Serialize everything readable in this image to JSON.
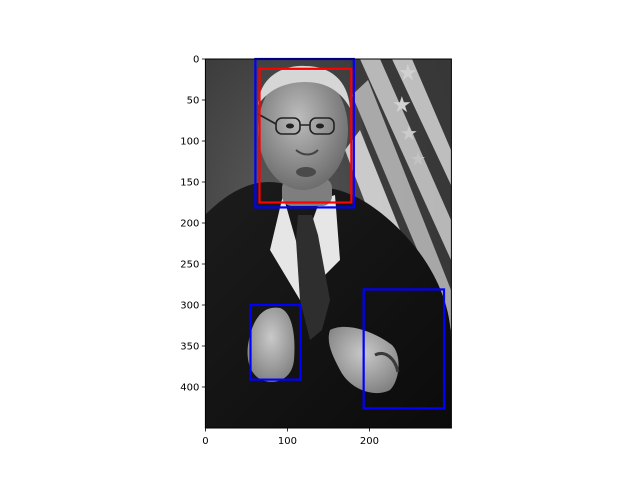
{
  "chart_data": {
    "type": "image",
    "image_extent": {
      "width": 300,
      "height": 450
    },
    "xlim": [
      0,
      300
    ],
    "ylim": [
      450,
      0
    ],
    "grid": false,
    "x_ticks": [
      0,
      100,
      200
    ],
    "y_ticks": [
      0,
      50,
      100,
      150,
      200,
      250,
      300,
      350,
      400
    ],
    "boxes": [
      {
        "label": "",
        "color": "#0000ff",
        "x0": 61,
        "y0": 0,
        "x1": 181,
        "y1": 181
      },
      {
        "label": "",
        "color": "#ff0000",
        "x0": 66,
        "y0": 12,
        "x1": 178,
        "y1": 175
      },
      {
        "label": "",
        "color": "#0000ff",
        "x0": 55,
        "y0": 300,
        "x1": 116,
        "y1": 391
      },
      {
        "label": "",
        "color": "#0000ff",
        "x0": 193,
        "y0": 281,
        "x1": 291,
        "y1": 426
      }
    ]
  },
  "photo_subject": "grayscale-portrait-man-in-suit-with-flag-background"
}
